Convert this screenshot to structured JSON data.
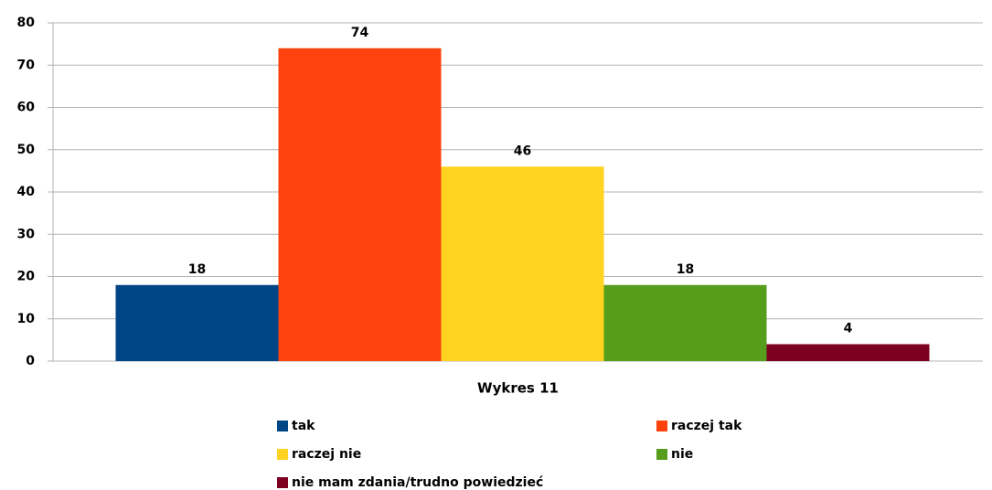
{
  "chart_data": {
    "type": "bar",
    "categories": [
      "Wykres 11"
    ],
    "series": [
      {
        "name": "tak",
        "color": "#004586",
        "values": [
          18
        ]
      },
      {
        "name": "raczej tak",
        "color": "#ff420e",
        "values": [
          74
        ]
      },
      {
        "name": "raczej nie",
        "color": "#ffd320",
        "values": [
          46
        ]
      },
      {
        "name": "nie",
        "color": "#579d1c",
        "values": [
          18
        ]
      },
      {
        "name": "nie mam zdania/trudno powiedzieć",
        "color": "#7e0021",
        "values": [
          4
        ]
      }
    ],
    "ylim": [
      0,
      80
    ],
    "yticks": [
      0,
      10,
      20,
      30,
      40,
      50,
      60,
      70,
      80
    ],
    "grid": true,
    "legend": "bottom"
  }
}
